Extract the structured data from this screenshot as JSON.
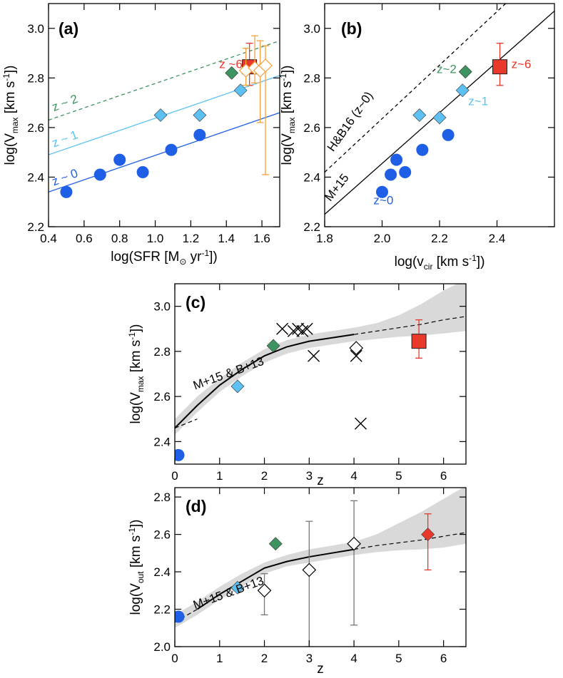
{
  "colors": {
    "z0": "#1f5fe6",
    "z1": "#5cc1f2",
    "z2": "#3d9460",
    "z6": "#e8392a",
    "orange": "#f5a03c",
    "band": "#d9d9d9",
    "ink": "#000000",
    "grey": "#777777"
  },
  "chart_data": [
    {
      "panel": "a",
      "label": "(a)",
      "type": "scatter",
      "xlabel_main": "log(SFR [M",
      "xlabel_sym": "⊙",
      "xlabel_end": " yr",
      "xlabel_sup": "-1",
      "xlabel_tail": "])",
      "ylabel_main": "log(V",
      "ylabel_sub": "max",
      "ylabel_mid": " [km s",
      "ylabel_sup": "-1",
      "ylabel_tail": "])",
      "xlim": [
        0.4,
        1.7
      ],
      "ylim": [
        2.2,
        3.1
      ],
      "xticks": [
        "0.4",
        "0.6",
        "0.8",
        "1.0",
        "1.2",
        "1.4",
        "1.6"
      ],
      "xtick_values": [
        0.4,
        0.6,
        0.8,
        1.0,
        1.2,
        1.4,
        1.6
      ],
      "yticks": [
        "2.2",
        "2.4",
        "2.6",
        "2.8",
        "3.0"
      ],
      "ytick_values": [
        2.2,
        2.4,
        2.6,
        2.8,
        3.0
      ],
      "lines": [
        {
          "name": "z~0 fit",
          "color_key": "z0",
          "dashed": false,
          "x": [
            0.4,
            1.7
          ],
          "y": [
            2.34,
            2.66
          ]
        },
        {
          "name": "z~1 fit",
          "color_key": "z1",
          "dashed": false,
          "x": [
            0.4,
            1.7
          ],
          "y": [
            2.49,
            2.81
          ]
        },
        {
          "name": "z~2 fit",
          "color_key": "z2",
          "dashed": true,
          "x": [
            0.4,
            1.7
          ],
          "y": [
            2.63,
            2.95
          ]
        }
      ],
      "series": [
        {
          "name": "z~0",
          "marker": "circle",
          "color_key": "z0",
          "x": [
            0.5,
            0.69,
            0.8,
            0.93,
            1.09,
            1.25
          ],
          "y": [
            2.34,
            2.41,
            2.47,
            2.42,
            2.51,
            2.57
          ]
        },
        {
          "name": "z~1",
          "marker": "diamond",
          "color_key": "z1",
          "x": [
            1.03,
            1.25,
            1.48
          ],
          "y": [
            2.65,
            2.65,
            2.75
          ]
        },
        {
          "name": "z~2",
          "marker": "diamond",
          "color_key": "z2",
          "x": [
            1.43
          ],
          "y": [
            2.82
          ]
        },
        {
          "name": "z~6",
          "marker": "square",
          "color_key": "z6",
          "x": [
            1.53
          ],
          "y": [
            2.845
          ],
          "yerr_low": [
            2.77
          ],
          "yerr_high": [
            2.94
          ]
        },
        {
          "name": "z~6 individual",
          "marker": "open-diamond",
          "color_key": "orange",
          "x": [
            1.51,
            1.56,
            1.59,
            1.62
          ],
          "y": [
            2.83,
            2.84,
            2.83,
            2.85
          ],
          "yerr_low": [
            2.77,
            2.78,
            2.62,
            2.41
          ],
          "yerr_high": [
            2.92,
            2.97,
            2.95,
            2.93
          ]
        }
      ],
      "annotations": [
        {
          "text": "z ~ 0",
          "color_key": "z0",
          "x": 0.43,
          "y": 2.365,
          "angle": -21
        },
        {
          "text": "z ~ 1",
          "color_key": "z1",
          "x": 0.43,
          "y": 2.52,
          "angle": -21
        },
        {
          "text": "z ~ 2",
          "color_key": "z2",
          "x": 0.43,
          "y": 2.665,
          "angle": -21
        },
        {
          "text": "z ~6",
          "color_key": "z6",
          "x": 1.36,
          "y": 2.84,
          "angle": 0
        }
      ]
    },
    {
      "panel": "b",
      "label": "(b)",
      "type": "scatter",
      "xlabel_main": "log(v",
      "xlabel_sub": "cir",
      "xlabel_mid": " [km s",
      "xlabel_sup": "-1",
      "xlabel_tail": "])",
      "ylabel_main": "log(V",
      "ylabel_sub": "max",
      "ylabel_mid": " [km s",
      "ylabel_sup": "-1",
      "ylabel_tail": "])",
      "xlim": [
        1.8,
        2.6
      ],
      "ylim": [
        2.2,
        3.1
      ],
      "xticks": [
        "1.8",
        "2.0",
        "2.2",
        "2.4"
      ],
      "xtick_values": [
        1.8,
        2.0,
        2.2,
        2.4
      ],
      "yticks": [
        "2.2",
        "2.4",
        "2.6",
        "2.8",
        "3.0"
      ],
      "ytick_values": [
        2.2,
        2.4,
        2.6,
        2.8,
        3.0
      ],
      "lines": [
        {
          "name": "M+15",
          "color_key": "ink",
          "dashed": false,
          "x": [
            1.8,
            2.6
          ],
          "y": [
            2.25,
            3.07
          ]
        },
        {
          "name": "H&B16 (z~0)",
          "color_key": "ink",
          "dashed": true,
          "x": [
            1.8,
            2.43
          ],
          "y": [
            2.42,
            3.1
          ]
        }
      ],
      "series": [
        {
          "name": "z~0",
          "marker": "circle",
          "color_key": "z0",
          "x": [
            2.0,
            2.03,
            2.05,
            2.08,
            2.14,
            2.23
          ],
          "y": [
            2.34,
            2.41,
            2.47,
            2.42,
            2.51,
            2.57
          ]
        },
        {
          "name": "z~1",
          "marker": "diamond",
          "color_key": "z1",
          "x": [
            2.13,
            2.2,
            2.28
          ],
          "y": [
            2.65,
            2.64,
            2.75
          ]
        },
        {
          "name": "z~2",
          "marker": "diamond",
          "color_key": "z2",
          "x": [
            2.29
          ],
          "y": [
            2.825
          ]
        },
        {
          "name": "z~6",
          "marker": "square",
          "color_key": "z6",
          "x": [
            2.41
          ],
          "y": [
            2.845
          ],
          "yerr_low": [
            2.77
          ],
          "yerr_high": [
            2.94
          ]
        }
      ],
      "annotations": [
        {
          "text": "z~0",
          "color_key": "z0",
          "x": 1.97,
          "y": 2.29,
          "angle": 0
        },
        {
          "text": "z~1",
          "color_key": "z1",
          "x": 2.3,
          "y": 2.69,
          "angle": 0
        },
        {
          "text": "z~2",
          "color_key": "z2",
          "x": 2.19,
          "y": 2.82,
          "angle": 0
        },
        {
          "text": "z~6",
          "color_key": "z6",
          "x": 2.45,
          "y": 2.84,
          "angle": 0
        },
        {
          "text": "M+15",
          "color_key": "ink",
          "x": 1.82,
          "y": 2.3,
          "angle": -52
        },
        {
          "text": "H&B16 (z~0)",
          "color_key": "ink",
          "x": 1.83,
          "y": 2.5,
          "angle": -55
        }
      ]
    },
    {
      "panel": "c",
      "label": "(c)",
      "type": "scatter",
      "xlabel_main": "z",
      "ylabel_main": "log(V",
      "ylabel_sub": "max",
      "ylabel_mid": " [km s",
      "ylabel_sup": "-1",
      "ylabel_tail": "])",
      "xlim": [
        0,
        6.5
      ],
      "ylim": [
        2.3,
        3.1
      ],
      "xticks": [
        "0",
        "1",
        "2",
        "3",
        "4",
        "5",
        "6"
      ],
      "xtick_values": [
        0,
        1,
        2,
        3,
        4,
        5,
        6
      ],
      "yticks": [
        "2.4",
        "2.6",
        "2.8",
        "3.0"
      ],
      "ytick_values": [
        2.4,
        2.6,
        2.8,
        3.0
      ],
      "model_label": "M+15 & B+13",
      "model_label_pos": {
        "x": 0.45,
        "y": 2.63,
        "angle": -20
      },
      "model_solid": {
        "x": [
          0,
          0.5,
          1,
          1.5,
          2,
          2.5,
          3,
          3.5,
          4
        ],
        "y": [
          2.46,
          2.56,
          2.65,
          2.72,
          2.78,
          2.82,
          2.845,
          2.86,
          2.875
        ]
      },
      "model_dashed_low": {
        "x": [
          0,
          0.5
        ],
        "y": [
          2.46,
          2.5
        ]
      },
      "model_dashed_high": {
        "x": [
          4,
          4.5,
          5,
          5.5,
          6,
          6.5
        ],
        "y": [
          2.875,
          2.89,
          2.905,
          2.92,
          2.94,
          2.955
        ]
      },
      "band": {
        "x": [
          0,
          0.5,
          1,
          1.5,
          2,
          2.5,
          3,
          3.5,
          4,
          4.5,
          5,
          5.5,
          6,
          6.5
        ],
        "y_low": [
          2.43,
          2.53,
          2.62,
          2.69,
          2.75,
          2.79,
          2.815,
          2.83,
          2.845,
          2.855,
          2.865,
          2.87,
          2.88,
          2.89
        ],
        "y_high": [
          2.5,
          2.6,
          2.68,
          2.75,
          2.81,
          2.85,
          2.875,
          2.89,
          2.905,
          2.925,
          2.96,
          3.01,
          3.07,
          3.12
        ]
      },
      "series": [
        {
          "name": "z~0",
          "marker": "circle",
          "color_key": "z0",
          "x": [
            0.08
          ],
          "y": [
            2.34
          ]
        },
        {
          "name": "z~1",
          "marker": "diamond",
          "color_key": "z1",
          "x": [
            1.4
          ],
          "y": [
            2.645
          ]
        },
        {
          "name": "z~2",
          "marker": "diamond",
          "color_key": "z2",
          "x": [
            2.2
          ],
          "y": [
            2.825
          ]
        },
        {
          "name": "z~6",
          "marker": "square",
          "color_key": "z6",
          "x": [
            5.45
          ],
          "y": [
            2.845
          ],
          "yerr_low": [
            2.77
          ],
          "yerr_high": [
            2.94
          ]
        },
        {
          "name": "literature",
          "marker": "cross",
          "color_key": "ink",
          "x": [
            2.4,
            2.65,
            2.75,
            2.85,
            2.95,
            3.1,
            4.05,
            4.15
          ],
          "y": [
            2.9,
            2.89,
            2.9,
            2.89,
            2.9,
            2.78,
            2.78,
            2.48
          ]
        },
        {
          "name": "literature open",
          "marker": "open-diamond",
          "color_key": "ink",
          "x": [
            4.05
          ],
          "y": [
            2.815
          ]
        }
      ]
    },
    {
      "panel": "d",
      "label": "(d)",
      "type": "scatter",
      "xlabel_main": "z",
      "ylabel_main": "log(V",
      "ylabel_sub": "out",
      "ylabel_mid": " [km s",
      "ylabel_sup": "-1",
      "ylabel_tail": "])",
      "xlim": [
        0,
        6.5
      ],
      "ylim": [
        2.0,
        2.85
      ],
      "xticks": [
        "0",
        "1",
        "2",
        "3",
        "4",
        "5",
        "6"
      ],
      "xtick_values": [
        0,
        1,
        2,
        3,
        4,
        5,
        6
      ],
      "yticks": [
        "2.0",
        "2.2",
        "2.4",
        "2.6",
        "2.8"
      ],
      "ytick_values": [
        2.0,
        2.2,
        2.4,
        2.6,
        2.8
      ],
      "model_label": "M+15 & B+13",
      "model_label_pos": {
        "x": 0.45,
        "y": 2.2,
        "angle": -20
      },
      "model_solid": {
        "x": [
          0.5,
          1,
          1.5,
          2,
          2.5,
          3,
          3.5,
          4
        ],
        "y": [
          2.2,
          2.28,
          2.35,
          2.42,
          2.455,
          2.48,
          2.5,
          2.52
        ]
      },
      "model_dashed_low": {
        "x": [
          0,
          0.5
        ],
        "y": [
          2.13,
          2.2
        ]
      },
      "model_dashed_high": {
        "x": [
          4,
          4.5,
          5,
          5.5,
          6,
          6.5
        ],
        "y": [
          2.52,
          2.54,
          2.555,
          2.57,
          2.59,
          2.61
        ]
      },
      "band": {
        "x": [
          0,
          0.5,
          1,
          1.5,
          2,
          2.5,
          3,
          3.5,
          4,
          4.5,
          5,
          5.5,
          6,
          6.5
        ],
        "y_low": [
          2.1,
          2.17,
          2.25,
          2.32,
          2.39,
          2.43,
          2.45,
          2.47,
          2.49,
          2.505,
          2.515,
          2.52,
          2.53,
          2.55
        ],
        "y_high": [
          2.17,
          2.24,
          2.32,
          2.39,
          2.45,
          2.49,
          2.52,
          2.54,
          2.56,
          2.6,
          2.66,
          2.72,
          2.79,
          2.86
        ]
      },
      "series": [
        {
          "name": "z~0",
          "marker": "circle",
          "color_key": "z0",
          "x": [
            0.08
          ],
          "y": [
            2.16
          ]
        },
        {
          "name": "z~1",
          "marker": "diamond",
          "color_key": "z1",
          "x": [
            1.4
          ],
          "y": [
            2.315
          ]
        },
        {
          "name": "z~2",
          "marker": "diamond",
          "color_key": "z2",
          "x": [
            2.25
          ],
          "y": [
            2.55
          ]
        },
        {
          "name": "z~6",
          "marker": "diamond",
          "color_key": "z6",
          "x": [
            5.65
          ],
          "y": [
            2.6
          ],
          "yerr_low": [
            2.41
          ],
          "yerr_high": [
            2.71
          ]
        },
        {
          "name": "literature",
          "marker": "open-diamond",
          "color_key": "ink",
          "x": [
            2.0,
            3.0,
            4.0
          ],
          "y": [
            2.3,
            2.41,
            2.55
          ],
          "yerr_low": [
            2.17,
            2.0,
            2.115
          ],
          "yerr_high": [
            2.39,
            2.67,
            2.78
          ]
        }
      ]
    }
  ]
}
